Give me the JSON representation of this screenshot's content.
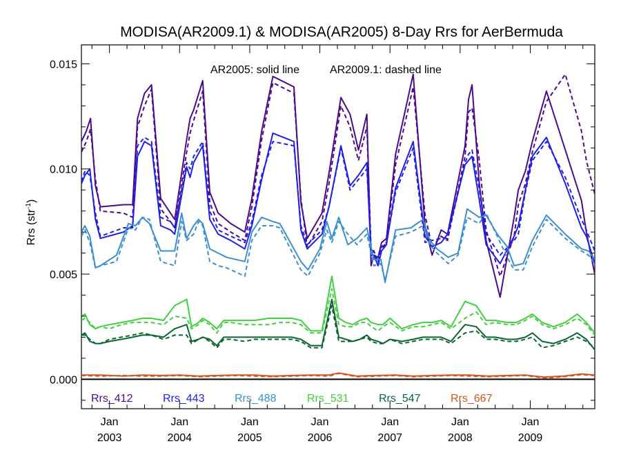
{
  "chart_data": {
    "type": "line",
    "title": "MODISA(AR2009.1) & MODISA(AR2005) 8-Day Rrs for AerBermuda",
    "annotation_solid": "AR2005: solid line",
    "annotation_dashed": "AR2009.1: dashed line",
    "ylabel_main": "Rrs (str",
    "ylabel_sup": "-1",
    "ylabel_end": ")",
    "ylim": [
      -0.0014,
      0.0159
    ],
    "xlim": [
      2002.6,
      2009.92
    ],
    "yticks": [
      {
        "value": 0.0,
        "label": "0.000"
      },
      {
        "value": 0.005,
        "label": "0.005"
      },
      {
        "value": 0.01,
        "label": "0.010"
      },
      {
        "value": 0.015,
        "label": "0.015"
      }
    ],
    "xticks": [
      {
        "value": 2003.0,
        "month": "Jan",
        "year": "2003"
      },
      {
        "value": 2004.0,
        "month": "Jan",
        "year": "2004"
      },
      {
        "value": 2005.0,
        "month": "Jan",
        "year": "2005"
      },
      {
        "value": 2006.0,
        "month": "Jan",
        "year": "2006"
      },
      {
        "value": 2007.0,
        "month": "Jan",
        "year": "2007"
      },
      {
        "value": 2008.0,
        "month": "Jan",
        "year": "2008"
      },
      {
        "value": 2009.0,
        "month": "Jan",
        "year": "2009"
      }
    ],
    "zero_line": 0.0,
    "legend_location": "bottom",
    "series": [
      {
        "name": "Rrs_412",
        "color": "#4b0a8c",
        "x": [
          2002.6,
          2002.67,
          2002.73,
          2002.8,
          2002.87,
          2003.2,
          2003.33,
          2003.4,
          2003.5,
          2003.6,
          2003.73,
          2003.87,
          2003.93,
          2004.1,
          2004.15,
          2004.2,
          2004.33,
          2004.43,
          2004.55,
          2004.73,
          2004.93,
          2005.03,
          2005.17,
          2005.33,
          2005.63,
          2005.73,
          2005.82,
          2006.03,
          2006.13,
          2006.3,
          2006.43,
          2006.55,
          2006.67,
          2006.73,
          2006.77,
          2006.83,
          2006.88,
          2006.95,
          2007.08,
          2007.33,
          2007.5,
          2007.6,
          2007.73,
          2007.82,
          2008.07,
          2008.12,
          2008.17,
          2008.27,
          2008.37,
          2008.57,
          2008.77,
          2008.83,
          2008.93,
          2009.03,
          2009.23,
          2009.5,
          2009.73,
          2009.8,
          2009.92
        ],
        "y": [
          0.0113,
          0.0118,
          0.0124,
          0.0092,
          0.0082,
          0.0083,
          0.0083,
          0.0124,
          0.0136,
          0.014,
          0.0086,
          0.0079,
          0.0076,
          0.0114,
          0.0124,
          0.0128,
          0.0142,
          0.0089,
          0.0079,
          0.0074,
          0.007,
          0.0086,
          0.0118,
          0.0144,
          0.0139,
          0.0084,
          0.0067,
          0.0079,
          0.0098,
          0.0134,
          0.0126,
          0.0109,
          0.0126,
          0.0054,
          0.0059,
          0.0058,
          0.0065,
          0.0067,
          0.0107,
          0.0145,
          0.0073,
          0.0059,
          0.0071,
          0.0069,
          0.0111,
          0.0133,
          0.014,
          0.0094,
          0.0066,
          0.0039,
          0.0077,
          0.009,
          0.0099,
          0.0113,
          0.0137,
          0.0109,
          0.0085,
          0.007,
          0.005
        ],
        "dashed_y": [
          0.0108,
          0.0113,
          0.0119,
          0.0095,
          0.008,
          0.0079,
          0.0077,
          0.012,
          0.013,
          0.0138,
          0.0081,
          0.0075,
          0.0072,
          0.0108,
          0.0117,
          0.0123,
          0.0137,
          0.0084,
          0.0074,
          0.007,
          0.0066,
          0.0082,
          0.0114,
          0.0141,
          0.0136,
          0.0086,
          0.0063,
          0.0075,
          0.0093,
          0.013,
          0.012,
          0.0104,
          0.012,
          0.0062,
          0.0061,
          0.0056,
          0.0062,
          0.0065,
          0.0102,
          0.0139,
          0.0078,
          0.0063,
          0.0068,
          0.0066,
          0.0106,
          0.0127,
          0.0129,
          0.0105,
          0.0071,
          0.0049,
          0.0068,
          0.0083,
          0.0093,
          0.0108,
          0.0132,
          0.0145,
          0.0118,
          0.0104,
          0.0088
        ]
      },
      {
        "name": "Rrs_443",
        "color": "#1f1fe6",
        "x": [
          2002.6,
          2002.65,
          2002.72,
          2002.8,
          2002.87,
          2003.2,
          2003.33,
          2003.4,
          2003.5,
          2003.6,
          2003.73,
          2003.87,
          2003.93,
          2004.1,
          2004.15,
          2004.2,
          2004.33,
          2004.43,
          2004.55,
          2004.73,
          2004.93,
          2005.03,
          2005.17,
          2005.33,
          2005.63,
          2005.73,
          2005.82,
          2006.03,
          2006.13,
          2006.3,
          2006.43,
          2006.55,
          2006.67,
          2006.73,
          2006.77,
          2006.83,
          2006.88,
          2006.95,
          2007.08,
          2007.33,
          2007.5,
          2007.6,
          2007.73,
          2007.82,
          2008.07,
          2008.12,
          2008.17,
          2008.27,
          2008.37,
          2008.57,
          2008.77,
          2008.83,
          2008.93,
          2009.03,
          2009.23,
          2009.5,
          2009.73,
          2009.8,
          2009.92
        ],
        "y": [
          0.0093,
          0.0097,
          0.01,
          0.0076,
          0.0067,
          0.007,
          0.0073,
          0.0106,
          0.0113,
          0.0111,
          0.0073,
          0.0071,
          0.0069,
          0.0101,
          0.0096,
          0.0103,
          0.0111,
          0.0076,
          0.0069,
          0.0066,
          0.0062,
          0.0073,
          0.0095,
          0.0117,
          0.0113,
          0.0071,
          0.0062,
          0.0069,
          0.0082,
          0.0111,
          0.0092,
          0.0097,
          0.0103,
          0.0059,
          0.0059,
          0.0054,
          0.0061,
          0.0064,
          0.0091,
          0.0113,
          0.0068,
          0.0063,
          0.0065,
          0.0069,
          0.0102,
          0.0104,
          0.0106,
          0.0086,
          0.0064,
          0.0055,
          0.0068,
          0.0073,
          0.009,
          0.0106,
          0.0115,
          0.0093,
          0.0072,
          0.0068,
          0.0055
        ],
        "dashed_y": [
          0.0094,
          0.0099,
          0.0097,
          0.0079,
          0.0068,
          0.0072,
          0.0072,
          0.0111,
          0.0115,
          0.0113,
          0.0077,
          0.0075,
          0.0072,
          0.0103,
          0.01,
          0.0106,
          0.0113,
          0.008,
          0.0071,
          0.0068,
          0.0065,
          0.0075,
          0.0097,
          0.0113,
          0.0111,
          0.0073,
          0.0064,
          0.0071,
          0.0082,
          0.011,
          0.009,
          0.0095,
          0.01,
          0.0062,
          0.006,
          0.0056,
          0.0063,
          0.0065,
          0.0089,
          0.011,
          0.0065,
          0.0066,
          0.0067,
          0.0067,
          0.0103,
          0.0107,
          0.0109,
          0.0091,
          0.0069,
          0.0059,
          0.0066,
          0.0069,
          0.0089,
          0.0104,
          0.0113,
          0.0096,
          0.0076,
          0.0071,
          0.0061
        ]
      },
      {
        "name": "Rrs_488",
        "color": "#3a8fcf",
        "x": [
          2002.6,
          2002.65,
          2002.72,
          2002.8,
          2002.87,
          2003.1,
          2003.27,
          2003.37,
          2003.47,
          2003.57,
          2003.73,
          2003.93,
          2004.03,
          2004.1,
          2004.2,
          2004.27,
          2004.33,
          2004.43,
          2004.55,
          2004.67,
          2004.93,
          2005.03,
          2005.17,
          2005.33,
          2005.43,
          2005.73,
          2005.83,
          2006.0,
          2006.1,
          2006.17,
          2006.27,
          2006.4,
          2006.53,
          2006.67,
          2006.77,
          2006.87,
          2006.93,
          2007.08,
          2007.3,
          2007.47,
          2007.57,
          2007.67,
          2007.83,
          2007.97,
          2008.1,
          2008.27,
          2008.37,
          2008.53,
          2008.67,
          2008.77,
          2008.9,
          2009.03,
          2009.23,
          2009.5,
          2009.73,
          2009.83,
          2009.92
        ],
        "y": [
          0.007,
          0.0073,
          0.0068,
          0.0053,
          0.0054,
          0.0059,
          0.0074,
          0.0073,
          0.0077,
          0.0074,
          0.0061,
          0.0061,
          0.0079,
          0.0067,
          0.0073,
          0.0076,
          0.0074,
          0.0062,
          0.006,
          0.0058,
          0.0056,
          0.007,
          0.0077,
          0.0075,
          0.0074,
          0.0056,
          0.0052,
          0.0062,
          0.0075,
          0.0067,
          0.0077,
          0.0064,
          0.0067,
          0.0072,
          0.0057,
          0.0057,
          0.0046,
          0.0071,
          0.0072,
          0.0076,
          0.0066,
          0.0062,
          0.0058,
          0.006,
          0.0081,
          0.0077,
          0.0078,
          0.0069,
          0.0063,
          0.0054,
          0.0055,
          0.0066,
          0.0078,
          0.0069,
          0.0062,
          0.0061,
          0.0057
        ],
        "dashed_y": [
          0.0068,
          0.0071,
          0.0065,
          0.0053,
          0.0054,
          0.0056,
          0.0072,
          0.0071,
          0.0077,
          0.0076,
          0.0056,
          0.0054,
          0.0075,
          0.0066,
          0.0069,
          0.0075,
          0.0073,
          0.0056,
          0.0054,
          0.0053,
          0.0049,
          0.0066,
          0.0073,
          0.0073,
          0.0072,
          0.0052,
          0.0049,
          0.006,
          0.0071,
          0.0065,
          0.0075,
          0.0069,
          0.0064,
          0.0069,
          0.0054,
          0.0055,
          0.0047,
          0.0068,
          0.007,
          0.0073,
          0.0064,
          0.006,
          0.0055,
          0.0059,
          0.0077,
          0.0074,
          0.0079,
          0.0068,
          0.0058,
          0.0052,
          0.0052,
          0.0063,
          0.0076,
          0.0067,
          0.0061,
          0.0059,
          0.0055
        ]
      },
      {
        "name": "Rrs_531",
        "color": "#3fcf3f",
        "x": [
          2002.6,
          2002.65,
          2002.72,
          2002.8,
          2002.87,
          2003.0,
          2003.17,
          2003.33,
          2003.47,
          2003.6,
          2003.77,
          2003.93,
          2004.1,
          2004.17,
          2004.27,
          2004.33,
          2004.43,
          2004.53,
          2004.63,
          2004.73,
          2004.93,
          2005.07,
          2005.27,
          2005.43,
          2005.6,
          2005.73,
          2005.87,
          2006.03,
          2006.17,
          2006.27,
          2006.37,
          2006.47,
          2006.57,
          2006.67,
          2006.73,
          2006.83,
          2006.9,
          2007.0,
          2007.17,
          2007.33,
          2007.47,
          2007.6,
          2007.73,
          2007.87,
          2008.07,
          2008.23,
          2008.37,
          2008.5,
          2008.67,
          2008.8,
          2008.93,
          2009.03,
          2009.17,
          2009.33,
          2009.5,
          2009.67,
          2009.8,
          2009.92
        ],
        "y": [
          0.003,
          0.0031,
          0.0026,
          0.0024,
          0.0025,
          0.0026,
          0.0027,
          0.0028,
          0.0029,
          0.0029,
          0.0028,
          0.0035,
          0.0038,
          0.0025,
          0.0027,
          0.0029,
          0.0027,
          0.0024,
          0.0028,
          0.0028,
          0.0028,
          0.0028,
          0.0029,
          0.0029,
          0.0029,
          0.0028,
          0.0023,
          0.0023,
          0.0049,
          0.0029,
          0.0027,
          0.0026,
          0.0028,
          0.0029,
          0.0027,
          0.0026,
          0.0026,
          0.0029,
          0.0024,
          0.0026,
          0.0027,
          0.0027,
          0.0028,
          0.0025,
          0.0037,
          0.0035,
          0.0028,
          0.0028,
          0.0027,
          0.0027,
          0.0029,
          0.0031,
          0.0027,
          0.0025,
          0.0027,
          0.0031,
          0.0027,
          0.0022
        ],
        "dashed_y": [
          0.0028,
          0.0029,
          0.0027,
          0.0024,
          0.0025,
          0.0024,
          0.0026,
          0.0027,
          0.0027,
          0.0027,
          0.0026,
          0.003,
          0.0029,
          0.0024,
          0.0026,
          0.0028,
          0.0026,
          0.0022,
          0.0027,
          0.0027,
          0.0026,
          0.0026,
          0.0026,
          0.0027,
          0.0027,
          0.0026,
          0.0022,
          0.0022,
          0.0043,
          0.0026,
          0.0025,
          0.0025,
          0.0027,
          0.0027,
          0.0025,
          0.0023,
          0.0025,
          0.0027,
          0.0023,
          0.0025,
          0.0025,
          0.0026,
          0.0027,
          0.0024,
          0.0029,
          0.0032,
          0.0026,
          0.0027,
          0.0026,
          0.0026,
          0.0028,
          0.003,
          0.0026,
          0.0024,
          0.0026,
          0.0029,
          0.0026,
          0.0021
        ]
      },
      {
        "name": "Rrs_547",
        "color": "#0a6630",
        "x": [
          2002.6,
          2002.65,
          2002.72,
          2002.8,
          2002.87,
          2003.0,
          2003.17,
          2003.33,
          2003.47,
          2003.6,
          2003.77,
          2003.93,
          2004.1,
          2004.17,
          2004.27,
          2004.33,
          2004.43,
          2004.53,
          2004.63,
          2004.73,
          2004.93,
          2005.07,
          2005.27,
          2005.43,
          2005.6,
          2005.73,
          2005.87,
          2006.03,
          2006.17,
          2006.27,
          2006.37,
          2006.47,
          2006.57,
          2006.67,
          2006.73,
          2006.83,
          2006.9,
          2007.0,
          2007.17,
          2007.33,
          2007.47,
          2007.6,
          2007.73,
          2007.87,
          2008.07,
          2008.23,
          2008.37,
          2008.5,
          2008.67,
          2008.8,
          2008.93,
          2009.03,
          2009.17,
          2009.33,
          2009.5,
          2009.67,
          2009.8,
          2009.92
        ],
        "y": [
          0.0021,
          0.0022,
          0.0018,
          0.0017,
          0.0017,
          0.0018,
          0.0019,
          0.002,
          0.0021,
          0.0021,
          0.002,
          0.0024,
          0.0026,
          0.0018,
          0.0019,
          0.002,
          0.0019,
          0.0016,
          0.002,
          0.002,
          0.002,
          0.002,
          0.002,
          0.002,
          0.002,
          0.0019,
          0.0016,
          0.0016,
          0.0038,
          0.002,
          0.0019,
          0.0018,
          0.0019,
          0.0021,
          0.0019,
          0.0018,
          0.0017,
          0.0019,
          0.0018,
          0.0019,
          0.002,
          0.002,
          0.002,
          0.0018,
          0.0026,
          0.0025,
          0.002,
          0.002,
          0.0019,
          0.0019,
          0.002,
          0.0022,
          0.0018,
          0.0017,
          0.0019,
          0.0022,
          0.0019,
          0.0014
        ],
        "dashed_y": [
          0.0021,
          0.0021,
          0.0019,
          0.0017,
          0.0017,
          0.0019,
          0.002,
          0.0021,
          0.0022,
          0.0021,
          0.0019,
          0.0021,
          0.0021,
          0.0017,
          0.0019,
          0.002,
          0.0018,
          0.0015,
          0.0019,
          0.0019,
          0.0018,
          0.0019,
          0.0019,
          0.0019,
          0.0019,
          0.0018,
          0.0015,
          0.0015,
          0.0035,
          0.0018,
          0.0018,
          0.0018,
          0.0019,
          0.002,
          0.0018,
          0.0017,
          0.0017,
          0.0019,
          0.0017,
          0.0018,
          0.0019,
          0.0019,
          0.0019,
          0.0017,
          0.0022,
          0.0023,
          0.0019,
          0.0019,
          0.0018,
          0.0018,
          0.0019,
          0.002,
          0.0015,
          0.0016,
          0.0018,
          0.002,
          0.0018,
          0.0015
        ]
      },
      {
        "name": "Rrs_667",
        "color": "#d9531e",
        "x": [
          2002.6,
          2002.87,
          2003.2,
          2003.47,
          2003.73,
          2004.0,
          2004.27,
          2004.53,
          2004.8,
          2005.07,
          2005.33,
          2005.6,
          2005.87,
          2006.13,
          2006.27,
          2006.53,
          2006.8,
          2007.07,
          2007.33,
          2007.6,
          2007.87,
          2008.13,
          2008.4,
          2008.67,
          2008.93,
          2009.2,
          2009.47,
          2009.73,
          2009.92
        ],
        "y": [
          0.0002,
          0.0002,
          0.00015,
          0.0002,
          0.00018,
          0.0002,
          0.00015,
          0.00018,
          0.0002,
          0.0002,
          0.00015,
          0.00018,
          0.0002,
          0.0002,
          0.0003,
          0.00015,
          0.00018,
          0.0002,
          0.00015,
          0.00018,
          0.0002,
          0.0002,
          0.00015,
          0.00018,
          0.0002,
          0.0001,
          0.00015,
          0.00025,
          0.0002
        ],
        "dashed_y": [
          0.00018,
          0.00015,
          0.00018,
          0.00015,
          0.00015,
          0.00018,
          0.00012,
          0.00015,
          0.00018,
          0.00015,
          0.00012,
          0.00015,
          0.00018,
          0.00015,
          0.00028,
          0.00012,
          0.00015,
          0.00018,
          0.00012,
          0.00015,
          0.00018,
          0.00015,
          0.00012,
          0.00015,
          0.00018,
          5e-05,
          0.00012,
          0.00022,
          0.00018
        ]
      }
    ]
  }
}
